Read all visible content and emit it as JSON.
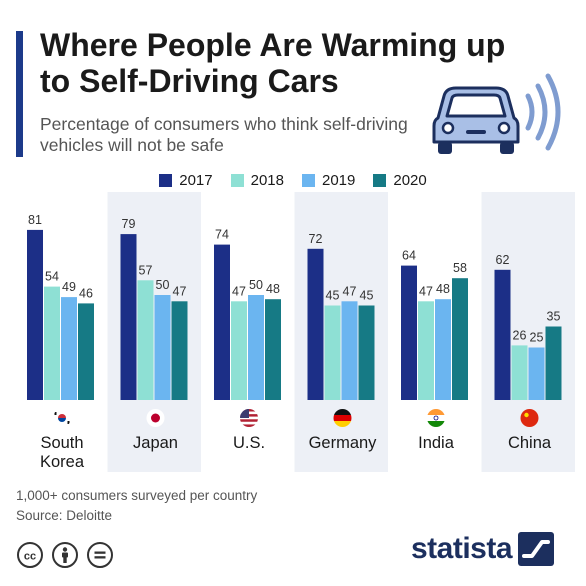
{
  "header": {
    "title": "Where People Are Warming up to Self-Driving Cars",
    "subtitle": "Percentage of consumers who think self-driving vehicles will not be safe"
  },
  "colors": {
    "accent": "#1c3a8a",
    "panel": "#edf0f6",
    "label": "#333333"
  },
  "icons": [
    "car-icon",
    "signal-waves-icon",
    "creative-commons-icon",
    "attribution-icon",
    "no-derivatives-icon",
    "statista-logo"
  ],
  "chart_data": {
    "type": "bar",
    "title": "Where People Are Warming up to Self-Driving Cars",
    "subtitle": "Percentage of consumers who think self-driving vehicles will not be safe",
    "xlabel": "",
    "ylabel": "",
    "ylim": [
      0,
      90
    ],
    "grid": false,
    "legend_position": "top-center",
    "categories": [
      {
        "label_lines": [
          "South",
          "Korea"
        ],
        "flag": "south-korea-flag-icon"
      },
      {
        "label_lines": [
          "Japan"
        ],
        "flag": "japan-flag-icon"
      },
      {
        "label_lines": [
          "U.S."
        ],
        "flag": "us-flag-icon"
      },
      {
        "label_lines": [
          "Germany"
        ],
        "flag": "germany-flag-icon"
      },
      {
        "label_lines": [
          "India"
        ],
        "flag": "india-flag-icon"
      },
      {
        "label_lines": [
          "China"
        ],
        "flag": "china-flag-icon"
      }
    ],
    "series": [
      {
        "name": "2017",
        "color": "#1c2f87",
        "values": [
          81,
          79,
          74,
          72,
          64,
          62
        ]
      },
      {
        "name": "2018",
        "color": "#8ee0d4",
        "values": [
          54,
          57,
          47,
          45,
          47,
          26
        ]
      },
      {
        "name": "2019",
        "color": "#6bb5f0",
        "values": [
          49,
          50,
          50,
          47,
          48,
          25
        ]
      },
      {
        "name": "2020",
        "color": "#167a85",
        "values": [
          46,
          47,
          48,
          45,
          58,
          35
        ]
      }
    ]
  },
  "footer": {
    "note": "1,000+ consumers surveyed per country",
    "source": "Source: Deloitte",
    "brand": "statista"
  }
}
